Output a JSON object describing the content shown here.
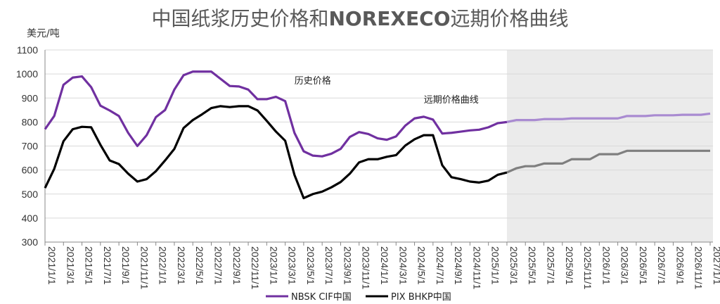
{
  "title": {
    "part1": "中国纸浆历史价格和",
    "part2": "NOREXECO",
    "part3": "远期价格曲线"
  },
  "colors": {
    "nbsk_history": "#7030A0",
    "nbsk_forward": "#A98BD1",
    "bhkp_history": "#000000",
    "bhkp_forward": "#7F7F7F",
    "forward_shade": "#EBEBEB",
    "grid": "#D9D9D9"
  },
  "chart_data": {
    "type": "line",
    "unit_label": "美元/吨",
    "ylim": [
      300,
      1100
    ],
    "yticks": [
      300,
      400,
      500,
      600,
      700,
      800,
      900,
      1000,
      1100
    ],
    "xticks": [
      "2021/1/1",
      "2021/3/1",
      "2021/5/1",
      "2021/7/1",
      "2021/9/1",
      "2021/11/1",
      "2022/1/1",
      "2022/3/1",
      "2022/5/1",
      "2022/7/1",
      "2022/9/1",
      "2022/11/1",
      "2023/1/1",
      "2023/3/1",
      "2023/5/1",
      "2023/7/1",
      "2023/9/1",
      "2023/11/1",
      "2024/1/1",
      "2024/3/1",
      "2024/5/1",
      "2024/7/1",
      "2024/9/1",
      "2024/11/1",
      "2025/1/1",
      "2025/3/1",
      "2025/5/1",
      "2025/7/1",
      "2025/9/1",
      "2025/11/1",
      "2026/1/1",
      "2026/3/1",
      "2026/5/1",
      "2026/7/1",
      "2026/9/1",
      "2026/11/1",
      "2027/1/1"
    ],
    "forward_start": "2025/3/1",
    "x": [
      "2021/1/1",
      "2021/2/1",
      "2021/3/1",
      "2021/4/1",
      "2021/5/1",
      "2021/6/1",
      "2021/7/1",
      "2021/8/1",
      "2021/9/1",
      "2021/10/1",
      "2021/11/1",
      "2021/12/1",
      "2022/1/1",
      "2022/2/1",
      "2022/3/1",
      "2022/4/1",
      "2022/5/1",
      "2022/6/1",
      "2022/7/1",
      "2022/8/1",
      "2022/9/1",
      "2022/10/1",
      "2022/11/1",
      "2022/12/1",
      "2023/1/1",
      "2023/2/1",
      "2023/3/1",
      "2023/4/1",
      "2023/5/1",
      "2023/6/1",
      "2023/7/1",
      "2023/8/1",
      "2023/9/1",
      "2023/10/1",
      "2023/11/1",
      "2023/12/1",
      "2024/1/1",
      "2024/2/1",
      "2024/3/1",
      "2024/4/1",
      "2024/5/1",
      "2024/6/1",
      "2024/7/1",
      "2024/8/1",
      "2024/9/1",
      "2024/10/1",
      "2024/11/1",
      "2024/12/1",
      "2025/1/1",
      "2025/2/1",
      "2025/3/1",
      "2025/4/1",
      "2025/5/1",
      "2025/6/1",
      "2025/7/1",
      "2025/8/1",
      "2025/9/1",
      "2025/10/1",
      "2025/11/1",
      "2025/12/1",
      "2026/1/1",
      "2026/2/1",
      "2026/3/1",
      "2026/4/1",
      "2026/5/1",
      "2026/6/1",
      "2026/7/1",
      "2026/8/1",
      "2026/9/1",
      "2026/10/1",
      "2026/11/1",
      "2026/12/1",
      "2027/1/1"
    ],
    "series": [
      {
        "name": "NBSK CIF中国",
        "values": [
          770,
          825,
          955,
          985,
          990,
          945,
          868,
          848,
          825,
          755,
          700,
          745,
          820,
          850,
          935,
          995,
          1010,
          1010,
          1010,
          980,
          950,
          948,
          935,
          895,
          895,
          905,
          887,
          755,
          678,
          660,
          657,
          668,
          688,
          738,
          758,
          750,
          732,
          726,
          740,
          785,
          815,
          822,
          810,
          752,
          755,
          760,
          765,
          768,
          778,
          795,
          800,
          808,
          808,
          808,
          812,
          812,
          812,
          815,
          815,
          815,
          815,
          815,
          815,
          825,
          825,
          825,
          828,
          828,
          828,
          830,
          830,
          830,
          835
        ]
      },
      {
        "name": "PIX BHKP中国",
        "values": [
          525,
          605,
          720,
          770,
          780,
          778,
          705,
          640,
          625,
          585,
          552,
          562,
          595,
          640,
          688,
          775,
          808,
          832,
          858,
          866,
          862,
          866,
          866,
          848,
          805,
          760,
          722,
          580,
          483,
          500,
          510,
          528,
          550,
          585,
          632,
          645,
          645,
          655,
          662,
          702,
          728,
          745,
          745,
          620,
          570,
          562,
          552,
          548,
          556,
          580,
          590,
          607,
          616,
          616,
          627,
          627,
          627,
          645,
          645,
          645,
          666,
          666,
          666,
          680,
          680,
          680,
          680,
          680,
          680,
          680,
          680,
          680,
          680
        ]
      }
    ],
    "annotations": [
      {
        "text": "历史价格",
        "x": "2023/4/1",
        "y": 960
      },
      {
        "text": "远期价格曲线",
        "x": "2024/6/1",
        "y": 880
      }
    ],
    "legend_position": "bottom"
  }
}
